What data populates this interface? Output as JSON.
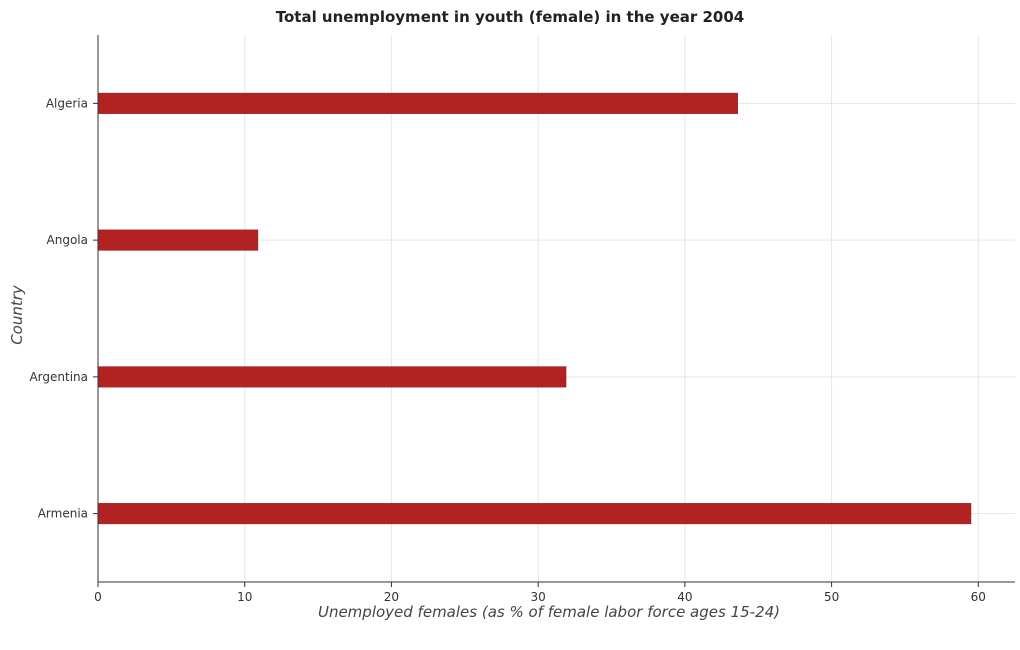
{
  "chart_data": {
    "type": "bar",
    "orientation": "horizontal",
    "title": "Total unemployment in youth (female) in the year 2004",
    "xlabel": "Unemployed females (as % of female labor force ages 15-24)",
    "ylabel": "Country",
    "categories": [
      "Algeria",
      "Angola",
      "Argentina",
      "Armenia"
    ],
    "values": [
      43.6,
      10.9,
      31.9,
      59.5
    ],
    "xlim": [
      0,
      62.5
    ],
    "xticks": [
      0,
      10,
      20,
      30,
      40,
      50,
      60
    ],
    "xtick_labels": [
      "0",
      "10",
      "20",
      "30",
      "40",
      "50",
      "60"
    ],
    "grid": true,
    "bar_color": "#b22222",
    "bar_edge_color": "#8b1a1a"
  }
}
